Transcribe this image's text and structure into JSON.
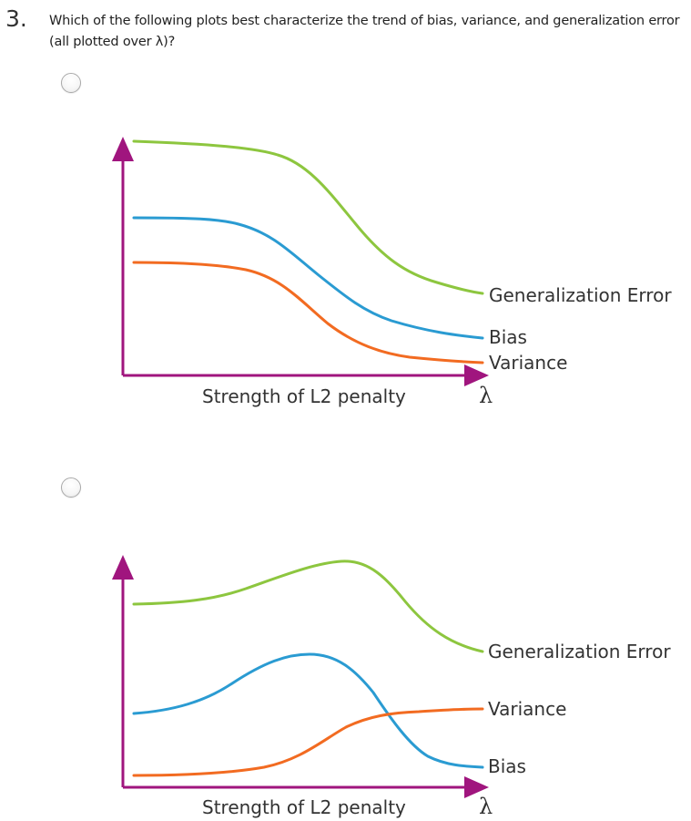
{
  "question": {
    "number": "3.",
    "text": "Which of the following plots best characterize the trend of bias, variance, and generalization error (all plotted over λ)?"
  },
  "options": [
    {
      "chart_data": {
        "type": "line",
        "xlabel": "Strength of L2 penalty",
        "x_symbol": "λ",
        "axis_color": "#a0157e",
        "series": [
          {
            "name": "Generalization Error",
            "color": "#8dc63f",
            "trend": "decreasing"
          },
          {
            "name": "Bias",
            "color": "#2a9bd2",
            "trend": "decreasing"
          },
          {
            "name": "Variance",
            "color": "#f26b21",
            "trend": "decreasing"
          }
        ]
      }
    },
    {
      "chart_data": {
        "type": "line",
        "xlabel": "Strength of L2 penalty",
        "x_symbol": "λ",
        "axis_color": "#a0157e",
        "series": [
          {
            "name": "Generalization Error",
            "color": "#8dc63f",
            "trend": "rises then falls"
          },
          {
            "name": "Variance",
            "color": "#f26b21",
            "trend": "increasing"
          },
          {
            "name": "Bias",
            "color": "#2a9bd2",
            "trend": "rises then falls"
          }
        ]
      }
    }
  ]
}
